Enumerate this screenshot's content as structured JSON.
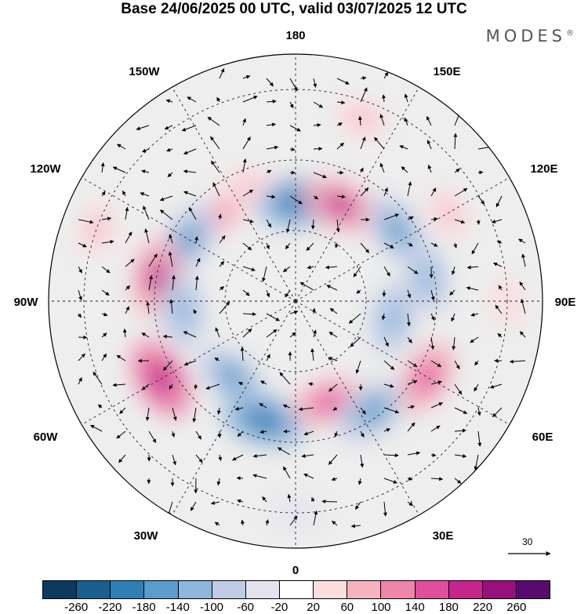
{
  "title": "Base 24/06/2025 00 UTC, valid 03/07/2025 12 UTC",
  "logo": "MODES",
  "logo_mark": "®",
  "longitude_labels": {
    "top": "180",
    "bottom": "0",
    "left": "90W",
    "right": "90E",
    "upper_left_1": "150W",
    "upper_left_2": "120W",
    "lower_left_1": "60W",
    "lower_left_2": "30W",
    "upper_right_1": "150E",
    "upper_right_2": "120E",
    "lower_right_1": "60E",
    "lower_right_2": "30E"
  },
  "reference_vector_label": "30",
  "colorbar": {
    "colors": [
      "#0d3a5c",
      "#1a5f8f",
      "#2f7fb5",
      "#5a9ccb",
      "#8fb6dc",
      "#c0cce6",
      "#e3e3f0",
      "#ffffff",
      "#fbdcdf",
      "#f5b3c0",
      "#ee85ab",
      "#e04f9e",
      "#c4268c",
      "#98107c",
      "#5a0a6e"
    ],
    "ticks": [
      "-260",
      "-220",
      "-180",
      "-140",
      "-100",
      "-60",
      "-20",
      "20",
      "60",
      "100",
      "140",
      "180",
      "220",
      "260"
    ]
  },
  "anomalies": [
    {
      "lon": 180,
      "lat": 62,
      "value": -200
    },
    {
      "lon": 155,
      "lat": 60,
      "value": 180
    },
    {
      "lon": 205,
      "lat": 55,
      "value": 80
    },
    {
      "lon": 220,
      "lat": 58,
      "value": 100
    },
    {
      "lon": 240,
      "lat": 55,
      "value": -160
    },
    {
      "lon": 260,
      "lat": 50,
      "value": 180
    },
    {
      "lon": 275,
      "lat": 58,
      "value": -140
    },
    {
      "lon": 300,
      "lat": 46,
      "value": 200
    },
    {
      "lon": 320,
      "lat": 62,
      "value": -160
    },
    {
      "lon": 345,
      "lat": 55,
      "value": -200
    },
    {
      "lon": 18,
      "lat": 60,
      "value": 140
    },
    {
      "lon": 35,
      "lat": 52,
      "value": -180
    },
    {
      "lon": 60,
      "lat": 47,
      "value": 160
    },
    {
      "lon": 80,
      "lat": 62,
      "value": -140
    },
    {
      "lon": 100,
      "lat": 52,
      "value": -120
    },
    {
      "lon": 125,
      "lat": 55,
      "value": -160
    },
    {
      "lon": 120,
      "lat": 40,
      "value": 60
    },
    {
      "lon": 160,
      "lat": 35,
      "value": 60
    },
    {
      "lon": 250,
      "lat": 30,
      "value": 60
    },
    {
      "lon": 0,
      "lat": 30,
      "value": -40
    },
    {
      "lon": 90,
      "lat": 30,
      "value": 40
    }
  ]
}
